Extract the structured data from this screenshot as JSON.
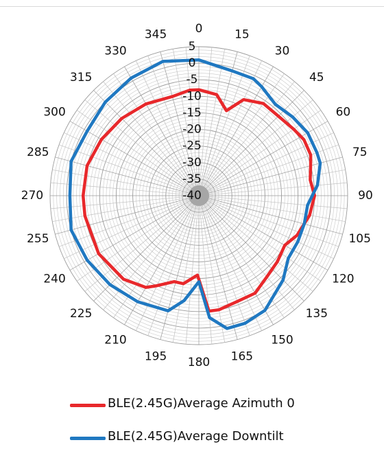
{
  "chart_data": {
    "type": "polar-line",
    "theta": [
      0,
      15,
      30,
      45,
      60,
      75,
      90,
      105,
      120,
      135,
      150,
      165,
      180,
      195,
      210,
      225,
      240,
      255,
      270,
      285,
      300,
      315,
      330,
      345
    ],
    "r_ticks": [
      5,
      0,
      -5,
      -10,
      -15,
      -20,
      -25,
      -30,
      -35,
      -40
    ],
    "rlim": [
      -40,
      5
    ],
    "grid": true,
    "legend_position": "bottom",
    "series": [
      {
        "name": "BLE(2.45G)Average Azimuth 0",
        "color": "#e8282b",
        "points": [
          [
            0,
            -8
          ],
          [
            10,
            -9
          ],
          [
            18,
            -13
          ],
          [
            25,
            -8
          ],
          [
            35,
            -6
          ],
          [
            45,
            -6
          ],
          [
            55,
            -5
          ],
          [
            62,
            -4
          ],
          [
            70,
            -4
          ],
          [
            75,
            -5
          ],
          [
            82,
            -6
          ],
          [
            90,
            -5
          ],
          [
            100,
            -6
          ],
          [
            112,
            -8
          ],
          [
            120,
            -10
          ],
          [
            130,
            -9
          ],
          [
            140,
            -8
          ],
          [
            150,
            -6
          ],
          [
            160,
            -6
          ],
          [
            170,
            -5
          ],
          [
            175,
            -5
          ],
          [
            181,
            -16
          ],
          [
            190,
            -13
          ],
          [
            196,
            -13
          ],
          [
            205,
            -10
          ],
          [
            210,
            -8
          ],
          [
            222,
            -6
          ],
          [
            240,
            -5
          ],
          [
            260,
            -5
          ],
          [
            270,
            -5
          ],
          [
            285,
            -5
          ],
          [
            300,
            -6
          ],
          [
            315,
            -7
          ],
          [
            330,
            -8
          ],
          [
            345,
            -9
          ],
          [
            355,
            -8
          ]
        ]
      },
      {
        "name": "BLE(2.45G)Average Downtilt",
        "color": "#1f78c1",
        "points": [
          [
            0,
            1
          ],
          [
            15,
            -1
          ],
          [
            25,
            -1
          ],
          [
            30,
            -2
          ],
          [
            40,
            -4
          ],
          [
            50,
            -3
          ],
          [
            60,
            -2
          ],
          [
            70,
            -2
          ],
          [
            75,
            -2
          ],
          [
            85,
            -4
          ],
          [
            95,
            -7
          ],
          [
            105,
            -7
          ],
          [
            115,
            -7
          ],
          [
            125,
            -7
          ],
          [
            135,
            -4
          ],
          [
            150,
            0
          ],
          [
            160,
            1
          ],
          [
            168,
            1
          ],
          [
            175,
            -3
          ],
          [
            180,
            -14
          ],
          [
            188,
            -8
          ],
          [
            195,
            -4
          ],
          [
            210,
            -3
          ],
          [
            225,
            -2
          ],
          [
            240,
            -1
          ],
          [
            255,
            0
          ],
          [
            270,
            -1
          ],
          [
            285,
            0
          ],
          [
            300,
            -1
          ],
          [
            315,
            0
          ],
          [
            330,
            1
          ],
          [
            345,
            2
          ],
          [
            355,
            1
          ]
        ]
      }
    ]
  }
}
